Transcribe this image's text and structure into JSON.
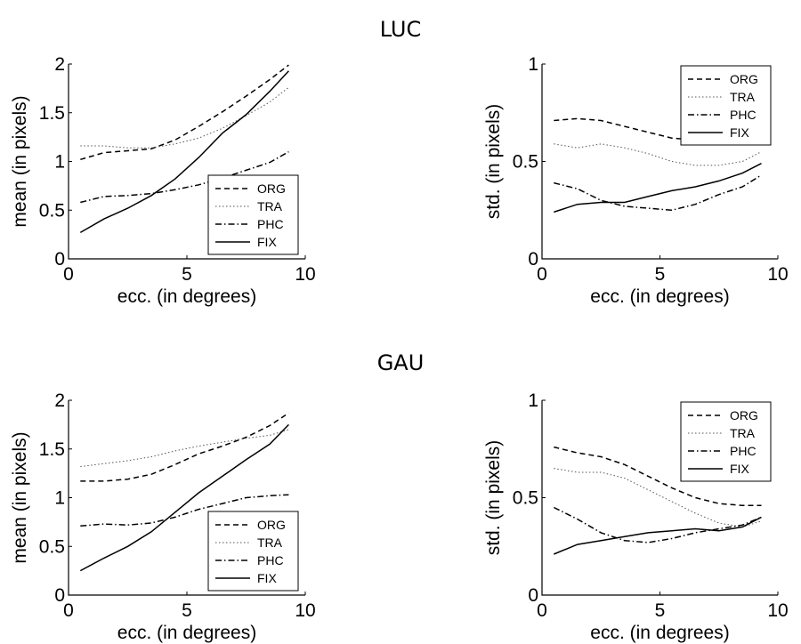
{
  "sections": [
    {
      "title": "LUC"
    },
    {
      "title": "GAU"
    }
  ],
  "chart_data": [
    {
      "type": "line",
      "section": "LUC",
      "xlabel": "ecc. (in degrees)",
      "ylabel": "mean (in pixels)",
      "xlim": [
        0,
        10
      ],
      "ylim": [
        0,
        2
      ],
      "xticks": [
        0,
        5,
        10
      ],
      "yticks": [
        0,
        0.5,
        1,
        1.5,
        2
      ],
      "xtick_labels": [
        "0",
        "5",
        "10"
      ],
      "ytick_labels": [
        "0",
        "0.5",
        "1",
        "1.5",
        "2"
      ],
      "legend_position": "bottom-right",
      "x": [
        0.5,
        1.5,
        2.5,
        3.5,
        4.5,
        5.5,
        6.5,
        7.5,
        8.5,
        9.3
      ],
      "series": [
        {
          "name": "ORG",
          "style": "dashed",
          "values": [
            1.02,
            1.09,
            1.11,
            1.13,
            1.22,
            1.36,
            1.51,
            1.67,
            1.84,
            1.99
          ]
        },
        {
          "name": "TRA",
          "style": "dotted",
          "values": [
            1.16,
            1.16,
            1.14,
            1.14,
            1.18,
            1.24,
            1.34,
            1.47,
            1.61,
            1.76
          ]
        },
        {
          "name": "PHC",
          "style": "dashdot",
          "values": [
            0.58,
            0.64,
            0.65,
            0.67,
            0.71,
            0.76,
            0.83,
            0.91,
            0.99,
            1.1
          ]
        },
        {
          "name": "FIX",
          "style": "solid",
          "values": [
            0.27,
            0.41,
            0.52,
            0.65,
            0.82,
            1.04,
            1.29,
            1.48,
            1.72,
            1.93
          ]
        }
      ]
    },
    {
      "type": "line",
      "section": "LUC",
      "xlabel": "ecc. (in degrees)",
      "ylabel": "std. (in pixels)",
      "xlim": [
        0,
        10
      ],
      "ylim": [
        0,
        1
      ],
      "xticks": [
        0,
        5,
        10
      ],
      "yticks": [
        0,
        0.5,
        1
      ],
      "xtick_labels": [
        "0",
        "5",
        "10"
      ],
      "ytick_labels": [
        "0",
        "0.5",
        "1"
      ],
      "legend_position": "top-right",
      "x": [
        0.5,
        1.5,
        2.5,
        3.5,
        4.5,
        5.5,
        6.5,
        7.5,
        8.5,
        9.3
      ],
      "series": [
        {
          "name": "ORG",
          "style": "dashed",
          "values": [
            0.71,
            0.72,
            0.71,
            0.68,
            0.65,
            0.62,
            0.61,
            0.61,
            0.6,
            0.66
          ]
        },
        {
          "name": "TRA",
          "style": "dotted",
          "values": [
            0.59,
            0.57,
            0.59,
            0.57,
            0.54,
            0.5,
            0.48,
            0.48,
            0.5,
            0.55
          ]
        },
        {
          "name": "PHC",
          "style": "dashdot",
          "values": [
            0.39,
            0.36,
            0.3,
            0.27,
            0.26,
            0.25,
            0.28,
            0.33,
            0.37,
            0.43
          ]
        },
        {
          "name": "FIX",
          "style": "solid",
          "values": [
            0.24,
            0.28,
            0.29,
            0.29,
            0.32,
            0.35,
            0.37,
            0.4,
            0.44,
            0.49
          ]
        }
      ]
    },
    {
      "type": "line",
      "section": "GAU",
      "xlabel": "ecc. (in degrees)",
      "ylabel": "mean (in pixels)",
      "xlim": [
        0,
        10
      ],
      "ylim": [
        0,
        2
      ],
      "xticks": [
        0,
        5,
        10
      ],
      "yticks": [
        0,
        0.5,
        1,
        1.5,
        2
      ],
      "xtick_labels": [
        "0",
        "5",
        "10"
      ],
      "ytick_labels": [
        "0",
        "0.5",
        "1",
        "1.5",
        "2"
      ],
      "legend_position": "bottom-right",
      "x": [
        0.5,
        1.5,
        2.5,
        3.5,
        4.5,
        5.5,
        6.5,
        7.5,
        8.5,
        9.3
      ],
      "series": [
        {
          "name": "ORG",
          "style": "dashed",
          "values": [
            1.17,
            1.17,
            1.19,
            1.24,
            1.34,
            1.45,
            1.53,
            1.62,
            1.74,
            1.87
          ]
        },
        {
          "name": "TRA",
          "style": "dotted",
          "values": [
            1.32,
            1.35,
            1.38,
            1.42,
            1.48,
            1.53,
            1.57,
            1.61,
            1.64,
            1.7
          ]
        },
        {
          "name": "PHC",
          "style": "dashdot",
          "values": [
            0.71,
            0.73,
            0.72,
            0.74,
            0.8,
            0.88,
            0.94,
            1.0,
            1.02,
            1.03
          ]
        },
        {
          "name": "FIX",
          "style": "solid",
          "values": [
            0.25,
            0.38,
            0.5,
            0.65,
            0.85,
            1.05,
            1.22,
            1.39,
            1.55,
            1.75
          ]
        }
      ]
    },
    {
      "type": "line",
      "section": "GAU",
      "xlabel": "ecc. (in degrees)",
      "ylabel": "std. (in pixels)",
      "xlim": [
        0,
        10
      ],
      "ylim": [
        0,
        1
      ],
      "xticks": [
        0,
        5,
        10
      ],
      "yticks": [
        0,
        0.5,
        1
      ],
      "xtick_labels": [
        "0",
        "5",
        "10"
      ],
      "ytick_labels": [
        "0",
        "0.5",
        "1"
      ],
      "legend_position": "top-right",
      "x": [
        0.5,
        1.5,
        2.5,
        3.5,
        4.5,
        5.5,
        6.5,
        7.5,
        8.5,
        9.3
      ],
      "series": [
        {
          "name": "ORG",
          "style": "dashed",
          "values": [
            0.76,
            0.73,
            0.71,
            0.67,
            0.61,
            0.55,
            0.5,
            0.47,
            0.46,
            0.46
          ]
        },
        {
          "name": "TRA",
          "style": "dotted",
          "values": [
            0.65,
            0.63,
            0.63,
            0.6,
            0.54,
            0.48,
            0.42,
            0.37,
            0.35,
            0.38
          ]
        },
        {
          "name": "PHC",
          "style": "dashdot",
          "values": [
            0.45,
            0.39,
            0.32,
            0.28,
            0.27,
            0.29,
            0.32,
            0.34,
            0.36,
            0.4
          ]
        },
        {
          "name": "FIX",
          "style": "solid",
          "values": [
            0.21,
            0.26,
            0.28,
            0.3,
            0.32,
            0.33,
            0.34,
            0.33,
            0.35,
            0.4
          ]
        }
      ]
    }
  ]
}
